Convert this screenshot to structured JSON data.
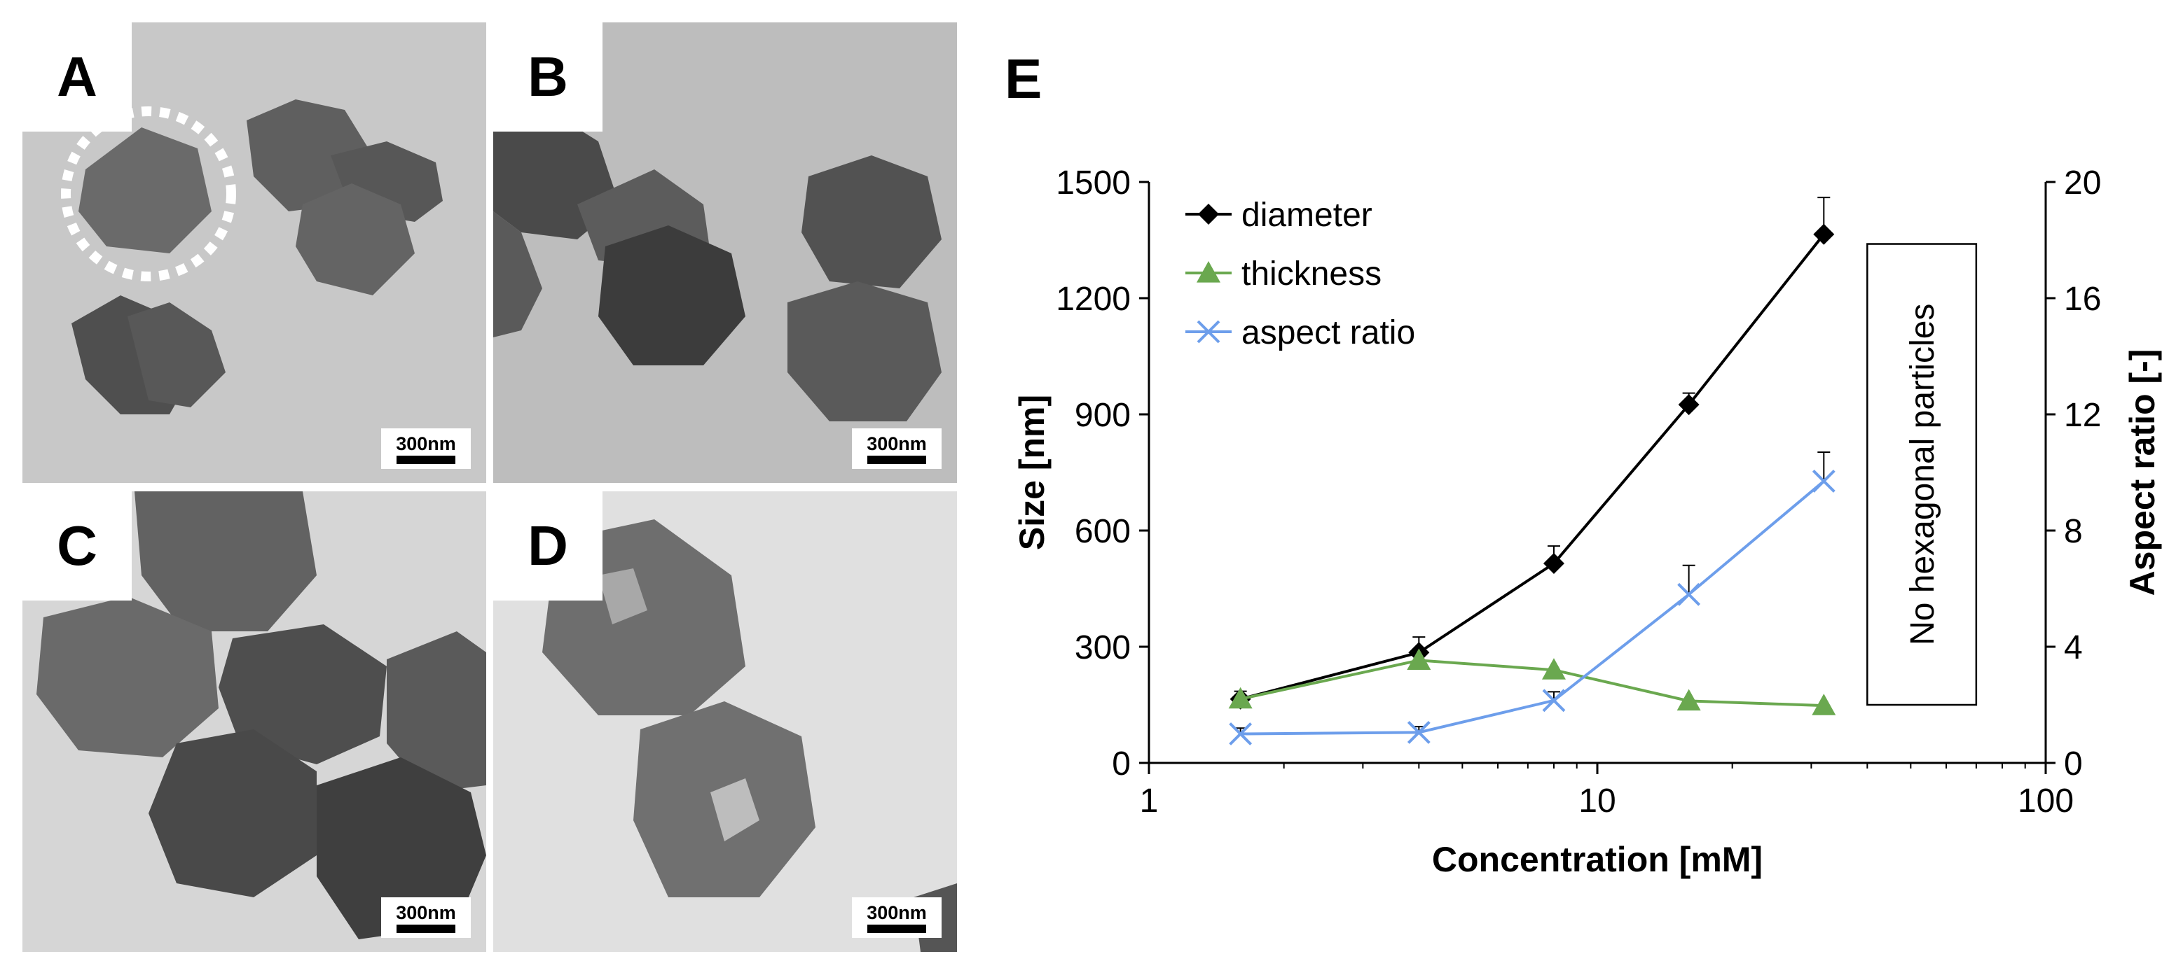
{
  "panels": [
    {
      "label": "A",
      "scale": "300nm",
      "bg": "#c9c9c9"
    },
    {
      "label": "B",
      "scale": "300nm",
      "bg": "#b9b9b9"
    },
    {
      "label": "C",
      "scale": "300nm",
      "bg": "#d3d3d3"
    },
    {
      "label": "D",
      "scale": "300nm",
      "bg": "#dedede"
    }
  ],
  "chart_data": {
    "type": "line",
    "panel_label": "E",
    "xlabel": "Concentration [mM]",
    "ylabel": "Size [nm]",
    "y2label": "Aspect ratio [-]",
    "xscale": "log",
    "xlim": [
      1,
      100
    ],
    "ylim": [
      0,
      1500
    ],
    "y2lim": [
      0,
      20
    ],
    "xticks": [
      {
        "v": 1,
        "label": "1"
      },
      {
        "v": 10,
        "label": "10"
      },
      {
        "v": 100,
        "label": "100"
      }
    ],
    "yticks": [
      {
        "v": 0,
        "label": "0"
      },
      {
        "v": 300,
        "label": "300"
      },
      {
        "v": 600,
        "label": "600"
      },
      {
        "v": 900,
        "label": "900"
      },
      {
        "v": 1200,
        "label": "1200"
      },
      {
        "v": 1500,
        "label": "1500"
      }
    ],
    "y2ticks": [
      {
        "v": 0,
        "label": "0"
      },
      {
        "v": 4,
        "label": "4"
      },
      {
        "v": 8,
        "label": "8"
      },
      {
        "v": 12,
        "label": "12"
      },
      {
        "v": 16,
        "label": "16"
      },
      {
        "v": 20,
        "label": "20"
      }
    ],
    "legend_position": "top-left",
    "annotation": {
      "text": "No hexagonal particles",
      "x_range": [
        40,
        70
      ],
      "y_range": [
        150,
        1340
      ]
    },
    "series": [
      {
        "name": "diameter",
        "axis": "left",
        "marker": "diamond",
        "color": "#000000",
        "x": [
          1.6,
          4,
          8,
          16,
          32
        ],
        "y": [
          165,
          285,
          515,
          925,
          1365
        ],
        "err": [
          20,
          40,
          45,
          30,
          95
        ]
      },
      {
        "name": "thickness",
        "axis": "left",
        "marker": "triangle",
        "color": "#6aa84f",
        "x": [
          1.6,
          4,
          8,
          16,
          32
        ],
        "y": [
          165,
          265,
          240,
          160,
          148
        ],
        "err": [
          0,
          0,
          0,
          0,
          0
        ]
      },
      {
        "name": "aspect ratio",
        "axis": "right",
        "marker": "cross",
        "color": "#6d9eeb",
        "x": [
          1.6,
          4,
          8,
          16,
          32
        ],
        "y": [
          1.0,
          1.05,
          2.15,
          5.8,
          9.7
        ],
        "err": [
          0.2,
          0.2,
          0.3,
          1.0,
          1.0
        ]
      }
    ]
  }
}
